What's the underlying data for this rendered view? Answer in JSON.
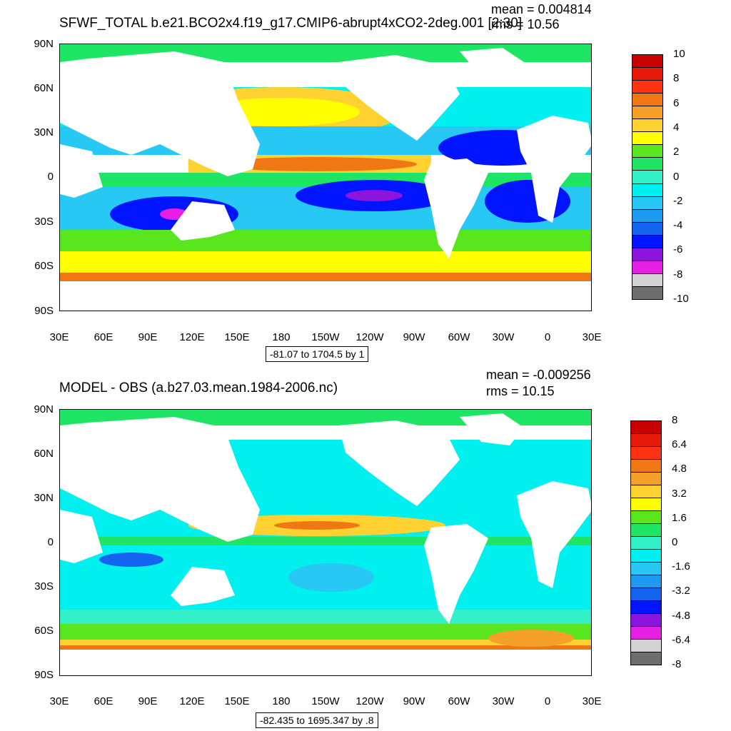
{
  "panels": [
    {
      "title": "SFWF_TOTAL b.e21.BCO2x4.f19_g17.CMIP6-abrupt4xCO2-2deg.001 [2:30]",
      "mean_text": "mean = 0.004814",
      "rms_text": "rms = 10.56",
      "range_text": "-81.07 to 1704.5 by 1",
      "lat_labels": [
        "90N",
        "60N",
        "30N",
        "0",
        "30S",
        "60S",
        "90S"
      ],
      "lon_labels": [
        "30E",
        "60E",
        "90E",
        "120E",
        "150E",
        "180",
        "150W",
        "120W",
        "90W",
        "60W",
        "30W",
        "0",
        "30E"
      ],
      "colorbar_labels": [
        "10",
        "8",
        "6",
        "4",
        "2",
        "0",
        "-2",
        "-4",
        "-6",
        "-8",
        "-10"
      ],
      "colorbar_colors": [
        "#c80000",
        "#e61a0a",
        "#ff3214",
        "#f07814",
        "#f5a028",
        "#ffd232",
        "#ffff00",
        "#5ae61e",
        "#1ee664",
        "#32f0c8",
        "#00f0f0",
        "#28c8f5",
        "#1e9bf0",
        "#1464f0",
        "#0014ff",
        "#8c14dc",
        "#e61ee6",
        "#d2d2d2",
        "#6e6e6e"
      ],
      "colorbar_min": -10,
      "colorbar_max": 10
    },
    {
      "title": "MODEL - OBS (a.b27.03.mean.1984-2006.nc)",
      "mean_text": "mean = -0.009256",
      "rms_text": "rms = 10.15",
      "range_text": "-82.435 to 1695.347 by .8",
      "lat_labels": [
        "90N",
        "60N",
        "30N",
        "0",
        "30S",
        "60S",
        "90S"
      ],
      "lon_labels": [
        "30E",
        "60E",
        "90E",
        "120E",
        "150E",
        "180",
        "150W",
        "120W",
        "90W",
        "60W",
        "30W",
        "0",
        "30E"
      ],
      "colorbar_labels": [
        "8",
        "6.4",
        "4.8",
        "3.2",
        "1.6",
        "0",
        "-1.6",
        "-3.2",
        "-4.8",
        "-6.4",
        "-8"
      ],
      "colorbar_colors": [
        "#c80000",
        "#e61a0a",
        "#ff3214",
        "#f07814",
        "#f5a028",
        "#ffd232",
        "#ffff00",
        "#5ae61e",
        "#1ee664",
        "#32f0c8",
        "#00f0f0",
        "#28c8f5",
        "#1e9bf0",
        "#1464f0",
        "#0014ff",
        "#8c14dc",
        "#e61ee6",
        "#d2d2d2",
        "#6e6e6e"
      ],
      "colorbar_min": -8,
      "colorbar_max": 8
    }
  ]
}
